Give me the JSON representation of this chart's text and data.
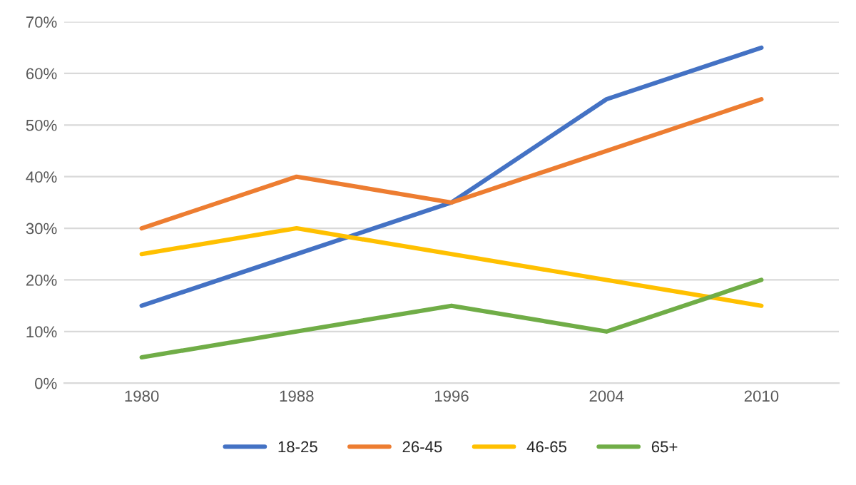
{
  "chart_data": {
    "type": "line",
    "categories": [
      "1980",
      "1988",
      "1996",
      "2004",
      "2010"
    ],
    "series": [
      {
        "name": "18-25",
        "color": "#4472c4",
        "values": [
          15,
          25,
          35,
          55,
          65
        ]
      },
      {
        "name": "26-45",
        "color": "#ed7d31",
        "values": [
          30,
          40,
          35,
          45,
          55
        ]
      },
      {
        "name": "46-65",
        "color": "#ffc000",
        "values": [
          25,
          30,
          25,
          20,
          15
        ]
      },
      {
        "name": "65+",
        "color": "#70ad47",
        "values": [
          5,
          10,
          15,
          10,
          20
        ]
      }
    ],
    "ylim": [
      0,
      70
    ],
    "yticks": [
      {
        "value": 0,
        "label": "0%"
      },
      {
        "value": 10,
        "label": "10%"
      },
      {
        "value": 20,
        "label": "20%"
      },
      {
        "value": 30,
        "label": "30%"
      },
      {
        "value": 40,
        "label": "40%"
      },
      {
        "value": 50,
        "label": "50%"
      },
      {
        "value": 60,
        "label": "60%"
      },
      {
        "value": 70,
        "label": "70%"
      }
    ],
    "grid": "y",
    "legend": "bottom",
    "marker": "none",
    "line_style": "solid"
  }
}
